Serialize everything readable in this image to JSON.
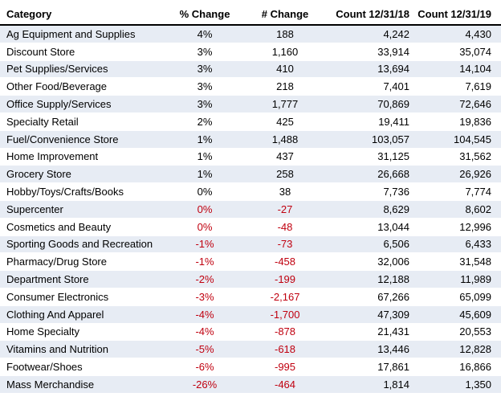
{
  "colors": {
    "negative_text": "#c0000f",
    "band_fill": "#e7ecf4",
    "header_rule": "#000000"
  },
  "table": {
    "headers": {
      "category": "Category",
      "pct_change": "% Change",
      "num_change": "# Change",
      "count_2018": "Count 12/31/18",
      "count_2019": "Count 12/31/19"
    },
    "rows": [
      {
        "category": "Ag Equipment and Supplies",
        "pct_change": "4%",
        "num_change": "188",
        "count_2018": "4,242",
        "count_2019": "4,430",
        "pct_negative": false,
        "num_negative": false
      },
      {
        "category": "Discount Store",
        "pct_change": "3%",
        "num_change": "1,160",
        "count_2018": "33,914",
        "count_2019": "35,074",
        "pct_negative": false,
        "num_negative": false
      },
      {
        "category": "Pet Supplies/Services",
        "pct_change": "3%",
        "num_change": "410",
        "count_2018": "13,694",
        "count_2019": "14,104",
        "pct_negative": false,
        "num_negative": false
      },
      {
        "category": "Other Food/Beverage",
        "pct_change": "3%",
        "num_change": "218",
        "count_2018": "7,401",
        "count_2019": "7,619",
        "pct_negative": false,
        "num_negative": false
      },
      {
        "category": "Office Supply/Services",
        "pct_change": "3%",
        "num_change": "1,777",
        "count_2018": "70,869",
        "count_2019": "72,646",
        "pct_negative": false,
        "num_negative": false
      },
      {
        "category": "Specialty Retail",
        "pct_change": "2%",
        "num_change": "425",
        "count_2018": "19,411",
        "count_2019": "19,836",
        "pct_negative": false,
        "num_negative": false
      },
      {
        "category": "Fuel/Convenience Store",
        "pct_change": "1%",
        "num_change": "1,488",
        "count_2018": "103,057",
        "count_2019": "104,545",
        "pct_negative": false,
        "num_negative": false
      },
      {
        "category": "Home Improvement",
        "pct_change": "1%",
        "num_change": "437",
        "count_2018": "31,125",
        "count_2019": "31,562",
        "pct_negative": false,
        "num_negative": false
      },
      {
        "category": "Grocery Store",
        "pct_change": "1%",
        "num_change": "258",
        "count_2018": "26,668",
        "count_2019": "26,926",
        "pct_negative": false,
        "num_negative": false
      },
      {
        "category": "Hobby/Toys/Crafts/Books",
        "pct_change": "0%",
        "num_change": "38",
        "count_2018": "7,736",
        "count_2019": "7,774",
        "pct_negative": false,
        "num_negative": false
      },
      {
        "category": "Supercenter",
        "pct_change": "0%",
        "num_change": "-27",
        "count_2018": "8,629",
        "count_2019": "8,602",
        "pct_negative": true,
        "num_negative": true
      },
      {
        "category": "Cosmetics and Beauty",
        "pct_change": "0%",
        "num_change": "-48",
        "count_2018": "13,044",
        "count_2019": "12,996",
        "pct_negative": true,
        "num_negative": true
      },
      {
        "category": "Sporting Goods and Recreation",
        "pct_change": "-1%",
        "num_change": "-73",
        "count_2018": "6,506",
        "count_2019": "6,433",
        "pct_negative": true,
        "num_negative": true
      },
      {
        "category": "Pharmacy/Drug Store",
        "pct_change": "-1%",
        "num_change": "-458",
        "count_2018": "32,006",
        "count_2019": "31,548",
        "pct_negative": true,
        "num_negative": true
      },
      {
        "category": "Department Store",
        "pct_change": "-2%",
        "num_change": "-199",
        "count_2018": "12,188",
        "count_2019": "11,989",
        "pct_negative": true,
        "num_negative": true
      },
      {
        "category": "Consumer Electronics",
        "pct_change": "-3%",
        "num_change": "-2,167",
        "count_2018": "67,266",
        "count_2019": "65,099",
        "pct_negative": true,
        "num_negative": true
      },
      {
        "category": "Clothing And Apparel",
        "pct_change": "-4%",
        "num_change": "-1,700",
        "count_2018": "47,309",
        "count_2019": "45,609",
        "pct_negative": true,
        "num_negative": true
      },
      {
        "category": "Home Specialty",
        "pct_change": "-4%",
        "num_change": "-878",
        "count_2018": "21,431",
        "count_2019": "20,553",
        "pct_negative": true,
        "num_negative": true
      },
      {
        "category": "Vitamins and Nutrition",
        "pct_change": "-5%",
        "num_change": "-618",
        "count_2018": "13,446",
        "count_2019": "12,828",
        "pct_negative": true,
        "num_negative": true
      },
      {
        "category": "Footwear/Shoes",
        "pct_change": "-6%",
        "num_change": "-995",
        "count_2018": "17,861",
        "count_2019": "16,866",
        "pct_negative": true,
        "num_negative": true
      },
      {
        "category": "Mass Merchandise",
        "pct_change": "-26%",
        "num_change": "-464",
        "count_2018": "1,814",
        "count_2019": "1,350",
        "pct_negative": true,
        "num_negative": true
      }
    ]
  }
}
